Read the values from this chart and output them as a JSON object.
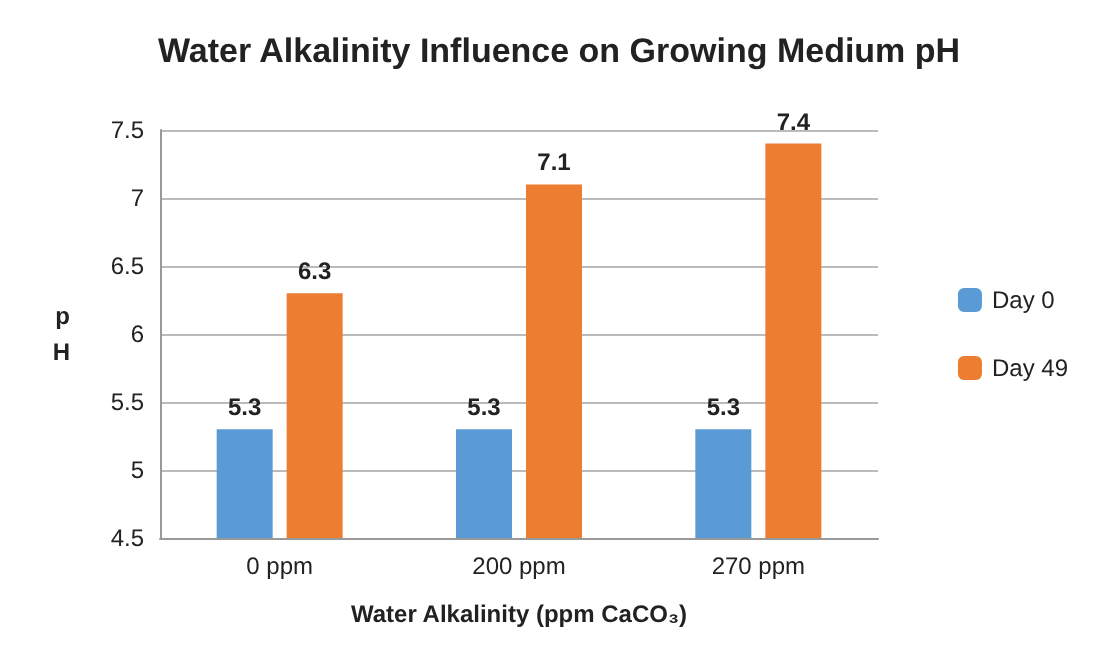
{
  "chart_data": {
    "type": "bar",
    "title": "Water Alkalinity Influence on Growing Medium pH",
    "xlabel": "Water Alkalinity (ppm CaCO₃)",
    "ylabel": "pH",
    "categories": [
      "0 ppm",
      "200 ppm",
      "270 ppm"
    ],
    "series": [
      {
        "name": "Day 0",
        "color": "#5b9bd5",
        "values": [
          5.3,
          5.3,
          5.3
        ]
      },
      {
        "name": "Day 49",
        "color": "#ed7d31",
        "values": [
          6.3,
          7.1,
          7.4
        ]
      }
    ],
    "ylim": [
      4.5,
      7.5
    ],
    "yticks": [
      4.5,
      5,
      5.5,
      6,
      6.5,
      7,
      7.5
    ],
    "grid": "y",
    "legend": "right",
    "data_labels": true
  }
}
